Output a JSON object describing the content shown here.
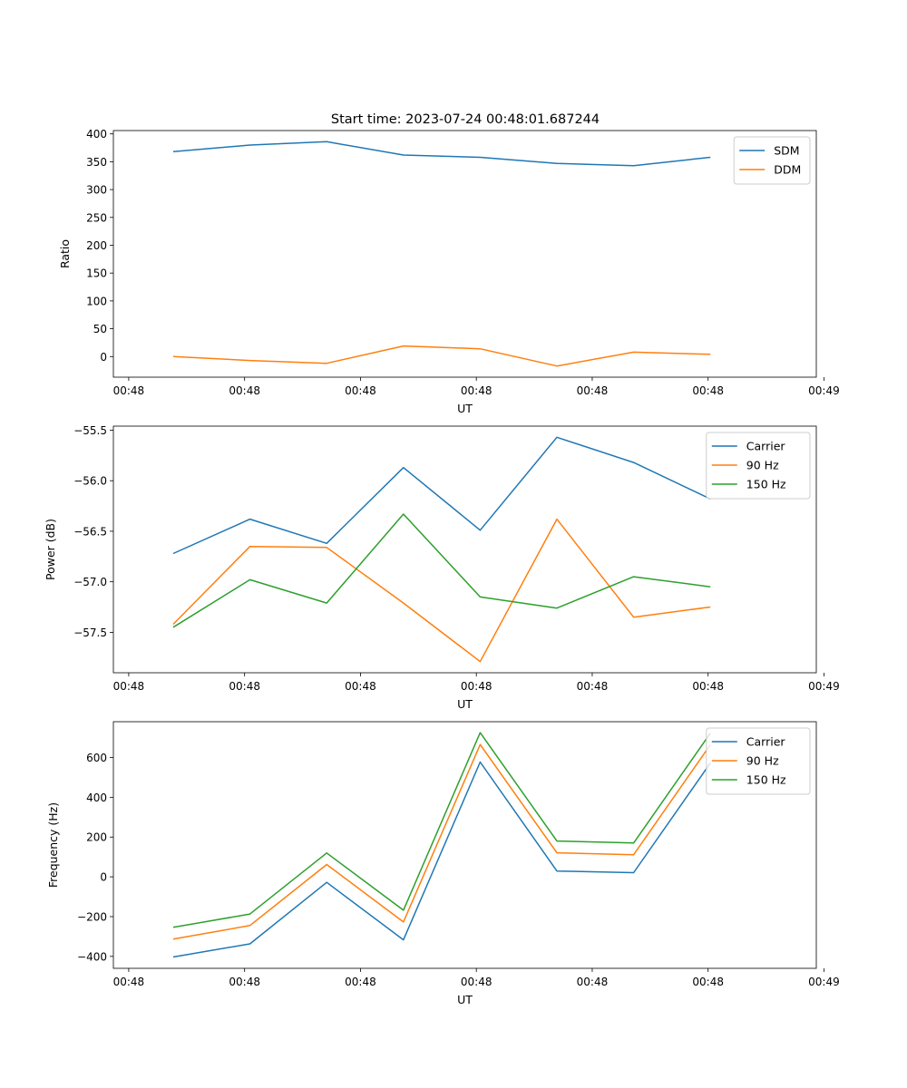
{
  "title": "Start time: 2023-07-24 00:48:01.687244",
  "chart_data": [
    {
      "type": "line",
      "title": "Start time: 2023-07-24 00:48:01.687244",
      "xlabel": "UT",
      "ylabel": "Ratio",
      "x": [
        1,
        2,
        3,
        4,
        5,
        6,
        7,
        8
      ],
      "xlim": [
        0.22,
        9.38
      ],
      "ylim": [
        -37,
        406
      ],
      "xticks": [
        0.42,
        1.93,
        3.44,
        4.95,
        6.46,
        7.97,
        9.48
      ],
      "xtick_labels": [
        "00:48",
        "00:48",
        "00:48",
        "00:48",
        "00:48",
        "00:48",
        "00:49"
      ],
      "yticks": [
        0,
        50,
        100,
        150,
        200,
        250,
        300,
        350,
        400
      ],
      "ytick_labels": [
        "0",
        "50",
        "100",
        "150",
        "200",
        "250",
        "300",
        "350",
        "400"
      ],
      "grid": false,
      "legend": "top-right",
      "series": [
        {
          "name": "SDM",
          "color": "#1f77b4",
          "values": [
            368,
            380,
            386,
            362,
            358,
            347,
            343,
            358
          ]
        },
        {
          "name": "DDM",
          "color": "#ff7f0e",
          "values": [
            0,
            -7,
            -12,
            19,
            14,
            -17,
            8,
            4
          ]
        }
      ]
    },
    {
      "type": "line",
      "title": "",
      "xlabel": "UT",
      "ylabel": "Power (dB)",
      "x": [
        1,
        2,
        3,
        4,
        5,
        6,
        7,
        8
      ],
      "xlim": [
        0.22,
        9.38
      ],
      "ylim": [
        -57.9,
        -55.46
      ],
      "xticks": [
        0.42,
        1.93,
        3.44,
        4.95,
        6.46,
        7.97,
        9.48
      ],
      "xtick_labels": [
        "00:48",
        "00:48",
        "00:48",
        "00:48",
        "00:48",
        "00:48",
        "00:49"
      ],
      "yticks": [
        -57.5,
        -57.0,
        -56.5,
        -56.0,
        -55.5
      ],
      "ytick_labels": [
        "−57.5",
        "−57.0",
        "−56.5",
        "−56.0",
        "−55.5"
      ],
      "grid": false,
      "legend": "top-right",
      "series": [
        {
          "name": "Carrier",
          "color": "#1f77b4",
          "values": [
            -56.72,
            -56.38,
            -56.62,
            -55.87,
            -56.49,
            -55.57,
            -55.82,
            -56.18
          ]
        },
        {
          "name": "90 Hz",
          "color": "#ff7f0e",
          "values": [
            -57.42,
            -56.65,
            -56.66,
            -57.21,
            -57.79,
            -56.38,
            -57.35,
            -57.25
          ]
        },
        {
          "name": "150 Hz",
          "color": "#2ca02c",
          "values": [
            -57.45,
            -56.98,
            -57.21,
            -56.33,
            -57.15,
            -57.26,
            -56.95,
            -57.05
          ]
        }
      ]
    },
    {
      "type": "line",
      "title": "",
      "xlabel": "UT",
      "ylabel": "Frequency (Hz)",
      "x": [
        1,
        2,
        3,
        4,
        5,
        6,
        7,
        8
      ],
      "xlim": [
        0.22,
        9.38
      ],
      "ylim": [
        -460,
        780
      ],
      "xticks": [
        0.42,
        1.93,
        3.44,
        4.95,
        6.46,
        7.97,
        9.48
      ],
      "xtick_labels": [
        "00:48",
        "00:48",
        "00:48",
        "00:48",
        "00:48",
        "00:48",
        "00:49"
      ],
      "yticks": [
        -400,
        -200,
        0,
        200,
        400,
        600
      ],
      "ytick_labels": [
        "−400",
        "−200",
        "0",
        "200",
        "400",
        "600"
      ],
      "grid": false,
      "legend": "top-right",
      "series": [
        {
          "name": "Carrier",
          "color": "#1f77b4",
          "values": [
            -403,
            -337,
            -28,
            -317,
            577,
            29,
            21,
            572
          ]
        },
        {
          "name": "90 Hz",
          "color": "#ff7f0e",
          "values": [
            -313,
            -245,
            62,
            -227,
            665,
            121,
            111,
            664
          ]
        },
        {
          "name": "150 Hz",
          "color": "#2ca02c",
          "values": [
            -254,
            -187,
            120,
            -168,
            725,
            180,
            170,
            722
          ]
        }
      ]
    }
  ]
}
